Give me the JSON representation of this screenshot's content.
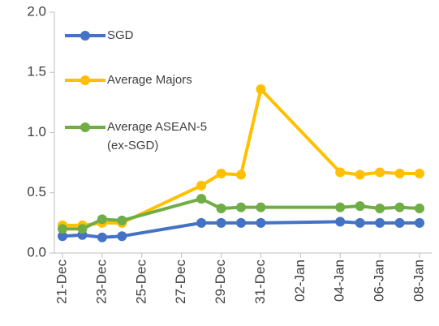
{
  "chart_data": {
    "type": "line",
    "x": [
      "21-Dec",
      "22-Dec",
      "23-Dec",
      "24-Dec",
      "28-Dec",
      "29-Dec",
      "30-Dec",
      "31-Dec",
      "04-Jan",
      "05-Jan",
      "06-Jan",
      "07-Jan",
      "08-Jan"
    ],
    "series": [
      {
        "name": "SGD",
        "color": "#4472c4",
        "values": [
          0.14,
          0.15,
          0.13,
          0.14,
          0.25,
          0.25,
          0.25,
          0.25,
          0.26,
          0.25,
          0.25,
          0.25,
          0.25
        ]
      },
      {
        "name": "Average Majors",
        "color": "#ffc000",
        "values": [
          0.23,
          0.23,
          0.25,
          0.25,
          0.56,
          0.66,
          0.65,
          1.36,
          0.67,
          0.65,
          0.67,
          0.66,
          0.66
        ]
      },
      {
        "name": "Average ASEAN-5 (ex-SGD)",
        "color": "#70ad47",
        "values": [
          0.2,
          0.2,
          0.28,
          0.27,
          0.45,
          0.37,
          0.38,
          0.38,
          0.38,
          0.39,
          0.37,
          0.38,
          0.37
        ]
      }
    ],
    "xticks": [
      "21-Dec",
      "23-Dec",
      "25-Dec",
      "27-Dec",
      "29-Dec",
      "31-Dec",
      "02-Jan",
      "04-Jan",
      "06-Jan",
      "08-Jan"
    ],
    "ylim": [
      0,
      2
    ],
    "yticks": [
      {
        "value": 0,
        "label": "0.0"
      },
      {
        "value": 0.5,
        "label": "0.5"
      },
      {
        "value": 1,
        "label": "1.0"
      },
      {
        "value": 1.5,
        "label": "1.5"
      },
      {
        "value": 2,
        "label": "2.0"
      }
    ],
    "legend": "upper left"
  }
}
